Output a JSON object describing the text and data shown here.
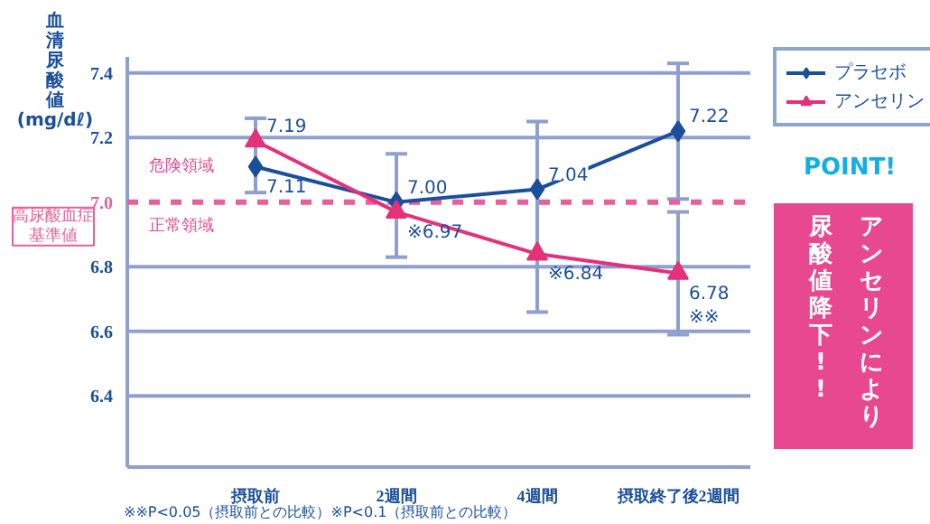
{
  "chart_data": {
    "type": "line",
    "ylabel": "血清尿酸値\n(mg/dℓ)",
    "categories": [
      "摂取前",
      "2週間",
      "4週間",
      "摂取終了後2週間"
    ],
    "series": [
      {
        "name": "プラセボ",
        "color": "#1a4f9c",
        "marker": "diamond",
        "values": [
          7.11,
          7.0,
          7.04,
          7.22
        ],
        "value_labels": [
          "7.11",
          "7.00",
          "7.04",
          "7.22"
        ],
        "errors": [
          [
            7.03,
            7.26
          ],
          [
            6.83,
            7.15
          ],
          [
            6.66,
            7.25
          ],
          [
            7.01,
            7.43
          ]
        ]
      },
      {
        "name": "アンセリン",
        "color": "#e5307a",
        "marker": "triangle",
        "values": [
          7.19,
          6.97,
          6.84,
          6.78
        ],
        "value_labels": [
          "7.19",
          "※6.97",
          "※6.84",
          "6.78\n※※"
        ],
        "errors": [
          null,
          null,
          null,
          [
            6.59,
            6.97
          ]
        ]
      }
    ],
    "ylim": [
      6.18,
      7.45
    ],
    "yticks": [
      6.4,
      6.6,
      6.8,
      {
        "value": 7.0,
        "label": "7.0"
      },
      7.2,
      7.4
    ],
    "grid": "y",
    "legend": "right",
    "line_style": "solid",
    "ref_lines": [
      {
        "axis": "y",
        "value": 7.0,
        "label": "高尿酸血症基準値",
        "color": "#e8609a",
        "line_style": "dashed"
      }
    ],
    "annotations": [
      "危険領域",
      "正常領域",
      "POINT!",
      "アンセリンにより",
      "尿酸値降下!!",
      "※※P<0.05（摂取前との比較）※P<0.1（摂取前との比較）"
    ]
  }
}
